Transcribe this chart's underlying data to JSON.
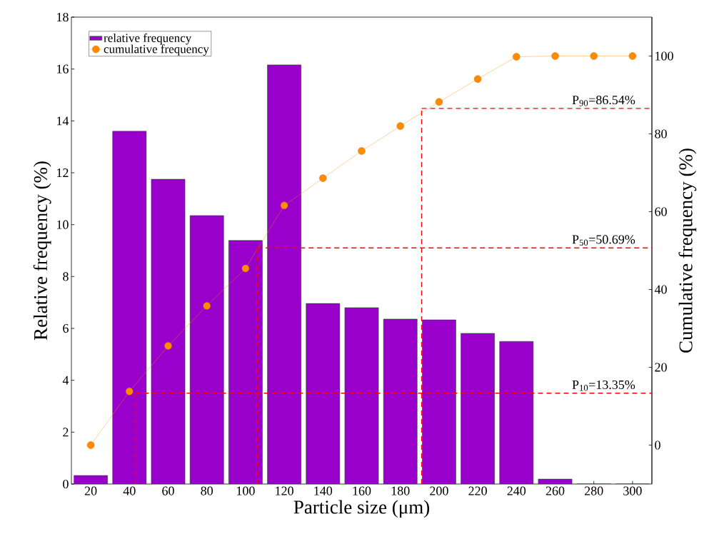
{
  "chart_data": {
    "type": "bar",
    "xlabel": "Particle size (μm)",
    "ylabel": "Relative frequency (%)",
    "y2label": "Cumulative frequency (%)",
    "x": [
      20,
      40,
      60,
      80,
      100,
      120,
      140,
      160,
      180,
      200,
      220,
      240,
      260,
      280,
      300
    ],
    "series": [
      {
        "name": "relative frequency",
        "color": "#9900cc",
        "values": [
          0.33,
          13.6,
          11.75,
          10.35,
          9.39,
          16.16,
          6.96,
          6.8,
          6.36,
          6.33,
          5.81,
          5.5,
          0.19,
          0,
          0
        ]
      },
      {
        "name": "cumulative frequency",
        "type": "line",
        "axis": "y2",
        "color": "#ff8c00",
        "values": [
          0,
          13.8,
          25.5,
          35.8,
          45.4,
          61.6,
          68.6,
          75.6,
          82.0,
          88.2,
          94.1,
          99.8,
          100,
          100,
          100
        ]
      }
    ],
    "marker": "circle",
    "legend": "top left",
    "xlim": [
      10,
      310
    ],
    "ylim": [
      0,
      18
    ],
    "y2lim": [
      -10,
      110
    ],
    "xticks": [
      20,
      40,
      60,
      80,
      100,
      120,
      140,
      160,
      180,
      200,
      220,
      240,
      260,
      280,
      300
    ],
    "yticks": [
      0,
      2,
      4,
      6,
      8,
      10,
      12,
      14,
      16,
      18
    ],
    "y2ticks": [
      0,
      20,
      40,
      60,
      80,
      100
    ],
    "ref_lines": [
      {
        "axis": "y2",
        "value": 13.35,
        "label": "P$_{10}$=13.35%",
        "color": "#ff0000",
        "line_style": "dashed"
      },
      {
        "axis": "y2",
        "value": 50.69,
        "label": "P$_{50}$=50.69%",
        "color": "#ff0000",
        "line_style": "dashed"
      },
      {
        "axis": "y2",
        "value": 86.54,
        "label": "P$_{90}$=86.54%",
        "color": "#ff0000",
        "line_style": "dashed"
      },
      {
        "axis": "x",
        "value": 43,
        "color": "#ff0000",
        "line_style": "dashed"
      },
      {
        "axis": "x",
        "value": 106,
        "color": "#ff0000",
        "line_style": "dashed"
      },
      {
        "axis": "x",
        "value": 191,
        "color": "#ff0000",
        "line_style": "dashed"
      }
    ]
  }
}
